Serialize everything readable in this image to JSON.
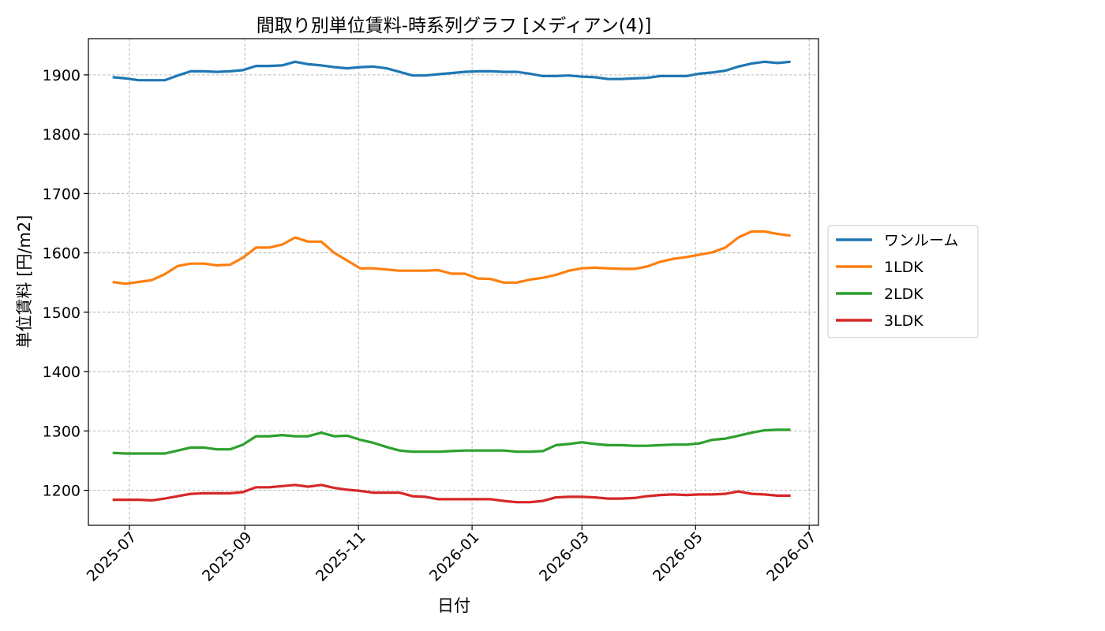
{
  "chart_data": {
    "type": "line",
    "title": "間取り別単位賃料-時系列グラフ [メディアン(4)]",
    "xlabel": "日付",
    "ylabel": "単位賃料 [円/m2]",
    "x": [
      "2025-06-22",
      "2025-06-29",
      "2025-07-06",
      "2025-07-13",
      "2025-07-20",
      "2025-07-27",
      "2025-08-03",
      "2025-08-10",
      "2025-08-17",
      "2025-08-24",
      "2025-08-31",
      "2025-09-07",
      "2025-09-14",
      "2025-09-21",
      "2025-09-28",
      "2025-10-05",
      "2025-10-12",
      "2025-10-19",
      "2025-10-26",
      "2025-11-02",
      "2025-11-09",
      "2025-11-16",
      "2025-11-23",
      "2025-11-30",
      "2025-12-07",
      "2025-12-14",
      "2025-12-21",
      "2025-12-28",
      "2026-01-04",
      "2026-01-11",
      "2026-01-18",
      "2026-01-25",
      "2026-02-01",
      "2026-02-08",
      "2026-02-15",
      "2026-02-22",
      "2026-03-01",
      "2026-03-08",
      "2026-03-15",
      "2026-03-22",
      "2026-03-29",
      "2026-04-05",
      "2026-04-12",
      "2026-04-19",
      "2026-04-26",
      "2026-05-03",
      "2026-05-10",
      "2026-05-17",
      "2026-05-24",
      "2026-05-31",
      "2026-06-07",
      "2026-06-14",
      "2026-06-21"
    ],
    "series": [
      {
        "name": "ワンルーム",
        "color": "#1f77b4",
        "values": [
          1896,
          1894,
          1891,
          1891,
          1891,
          1899,
          1906,
          1906,
          1905,
          1906,
          1908,
          1915,
          1915,
          1916,
          1922,
          1918,
          1916,
          1913,
          1911,
          1913,
          1914,
          1911,
          1905,
          1899,
          1899,
          1901,
          1903,
          1905,
          1906,
          1906,
          1905,
          1905,
          1902,
          1898,
          1898,
          1899,
          1897,
          1896,
          1893,
          1893,
          1894,
          1895,
          1898,
          1898,
          1898,
          1902,
          1904,
          1907,
          1914,
          1919,
          1922,
          1920,
          1922
        ]
      },
      {
        "name": "1LDK",
        "color": "#ff7f0e",
        "values": [
          1551,
          1548,
          1551,
          1554,
          1564,
          1578,
          1582,
          1582,
          1579,
          1580,
          1592,
          1609,
          1609,
          1614,
          1626,
          1619,
          1619,
          1600,
          1587,
          1574,
          1574,
          1572,
          1570,
          1570,
          1570,
          1571,
          1565,
          1565,
          1557,
          1556,
          1550,
          1550,
          1555,
          1558,
          1563,
          1570,
          1574,
          1575,
          1574,
          1573,
          1573,
          1577,
          1585,
          1590,
          1593,
          1597,
          1601,
          1609,
          1626,
          1636,
          1636,
          1632,
          1629
        ]
      },
      {
        "name": "2LDK",
        "color": "#2ca02c",
        "values": [
          1263,
          1262,
          1262,
          1262,
          1262,
          1267,
          1272,
          1272,
          1269,
          1269,
          1277,
          1291,
          1291,
          1293,
          1291,
          1291,
          1297,
          1291,
          1292,
          1285,
          1280,
          1273,
          1267,
          1265,
          1265,
          1265,
          1266,
          1267,
          1267,
          1267,
          1267,
          1265,
          1265,
          1266,
          1276,
          1278,
          1281,
          1278,
          1276,
          1276,
          1275,
          1275,
          1276,
          1277,
          1277,
          1279,
          1285,
          1287,
          1292,
          1297,
          1301,
          1302,
          1302
        ]
      },
      {
        "name": "3LDK",
        "color": "#d62728",
        "values": [
          1184,
          1184,
          1184,
          1183,
          1186,
          1190,
          1194,
          1195,
          1195,
          1195,
          1197,
          1205,
          1205,
          1207,
          1209,
          1206,
          1209,
          1204,
          1201,
          1199,
          1196,
          1196,
          1196,
          1190,
          1189,
          1185,
          1185,
          1185,
          1185,
          1185,
          1182,
          1180,
          1180,
          1182,
          1188,
          1189,
          1189,
          1188,
          1186,
          1186,
          1187,
          1190,
          1192,
          1193,
          1192,
          1193,
          1193,
          1194,
          1198,
          1194,
          1193,
          1191,
          1191
        ]
      }
    ],
    "xlim": [
      "2025-06-09",
      "2026-07-06"
    ],
    "ylim": [
      1141,
      1961
    ],
    "xticks": [
      "2025-07",
      "2025-09",
      "2025-11",
      "2026-01",
      "2026-03",
      "2026-05",
      "2026-07"
    ],
    "yticks": [
      1200,
      1300,
      1400,
      1500,
      1600,
      1700,
      1800,
      1900
    ],
    "grid": true,
    "legend_position": "outside-right"
  }
}
